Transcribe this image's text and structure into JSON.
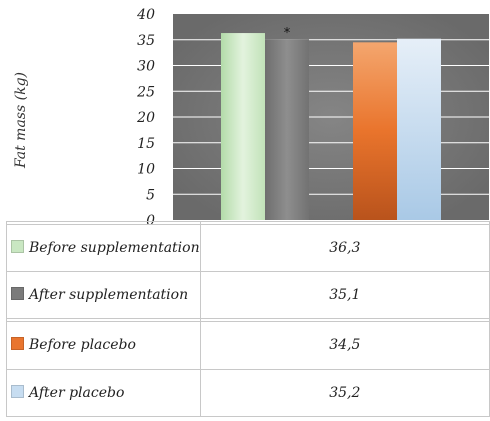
{
  "chart_data": {
    "type": "bar",
    "ylabel": "Fat mass (kg)",
    "ylim": [
      0,
      40
    ],
    "yticks": [
      0,
      5,
      10,
      15,
      20,
      25,
      30,
      35,
      40
    ],
    "grid": true,
    "series": [
      {
        "name": "Before supplementation",
        "value": 36.3,
        "value_label": "36,3",
        "color": "#c9e7c2",
        "annotation": ""
      },
      {
        "name": "After supplementation",
        "value": 35.1,
        "value_label": "35,1",
        "color": "#7b7b7b",
        "annotation": "*"
      },
      {
        "name": "Before placebo",
        "value": 34.5,
        "value_label": "34,5",
        "color": "#e9752e",
        "annotation": ""
      },
      {
        "name": "After placebo",
        "value": 35.2,
        "value_label": "35,2",
        "color": "#c7ddf1",
        "annotation": ""
      }
    ]
  }
}
